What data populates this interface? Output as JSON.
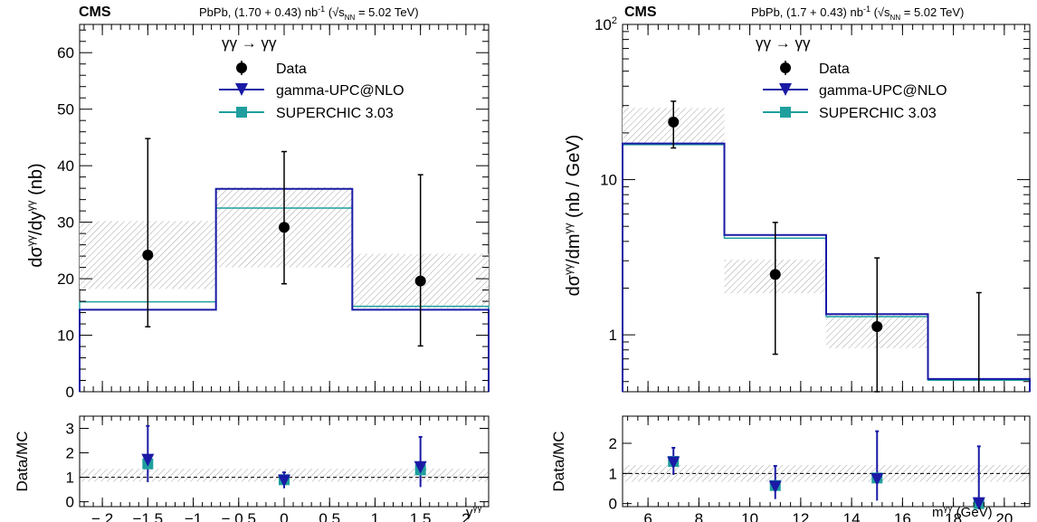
{
  "colors": {
    "data": "#000000",
    "gamma_upc": "#1a1aa6",
    "superchic": "#1f9e9e",
    "uncert_band": "#9a9a9a"
  },
  "chart_data": [
    {
      "id": "rapidity",
      "type": "histogram",
      "experiment": "CMS",
      "lumi_prefix": "PbPb, (1.70 + 0.43) nb",
      "lumi_exp": "-1",
      "energy_text": "= 5.02 TeV)",
      "process": "γγ → γγ",
      "ylabel": "dσ^γγ/dy^γγ (nb)",
      "xlabel": "y^γγ",
      "ratio_ylabel": "Data/MC",
      "xlim": [
        -2.25,
        2.25
      ],
      "ylim": [
        0,
        65
      ],
      "ylog": false,
      "yticks": [
        0,
        10,
        20,
        30,
        40,
        50,
        60
      ],
      "xtick_labels": [
        "− 2",
        "−1.5",
        "−1",
        "− 0.5",
        "0",
        "0.5",
        "1",
        "1.5",
        "2"
      ],
      "xticks": [
        -2,
        -1.5,
        -1,
        -0.5,
        0,
        0.5,
        1,
        1.5,
        2
      ],
      "bin_edges": [
        -2.25,
        -0.75,
        0.75,
        2.25
      ],
      "plot_bins": [
        [
          -2.25,
          -0.75
        ],
        [
          -0.75,
          0.75
        ],
        [
          0.75,
          2.25
        ]
      ],
      "data": {
        "name": "Data",
        "x": [
          -1.5,
          0,
          1.5
        ],
        "y": [
          24.2,
          29.1,
          19.6
        ],
        "err_lo": [
          12.7,
          10.0,
          11.5
        ],
        "err_hi": [
          20.6,
          13.4,
          18.8
        ],
        "syst_lo": [
          18.2,
          22.0,
          14.8
        ],
        "syst_hi": [
          30.2,
          36.2,
          24.4
        ]
      },
      "series": [
        {
          "name": "gamma-UPC@NLO",
          "values": [
            14.5,
            35.9,
            14.5
          ]
        },
        {
          "name": "SUPERCHIC 3.03",
          "values": [
            15.9,
            32.5,
            15.1
          ]
        }
      ],
      "ratio": {
        "ylim": [
          -0.2,
          3.5
        ],
        "yticks": [
          0,
          1,
          2,
          3
        ],
        "band": [
          0.82,
          1.35
        ],
        "x": [
          -1.5,
          0,
          1.5
        ],
        "gamma_upc": [
          1.7,
          0.85,
          1.4
        ],
        "superchic": [
          1.55,
          0.9,
          1.3
        ],
        "err_lo": [
          0.9,
          0.3,
          0.8
        ],
        "err_hi": [
          1.4,
          0.35,
          1.25
        ]
      }
    },
    {
      "id": "mass",
      "type": "histogram",
      "experiment": "CMS",
      "lumi_prefix": "PbPb, (1.7 + 0.43) nb",
      "lumi_exp": "-1",
      "energy_text": "= 5.02 TeV)",
      "process": "γγ → γγ",
      "ylabel": "dσ^γγ/dm^γγ (nb / GeV)",
      "xlabel": "m^γγ (GeV)",
      "ratio_ylabel": "Data/MC",
      "xlim": [
        5,
        21
      ],
      "ylim": [
        0.43,
        100
      ],
      "ylog": true,
      "yticks": [
        1,
        10,
        100
      ],
      "ytick_labels": [
        "1",
        "10",
        "10²"
      ],
      "xtick_labels": [
        "6",
        "8",
        "10",
        "12",
        "14",
        "16",
        "18",
        "20"
      ],
      "xticks": [
        6,
        8,
        10,
        12,
        14,
        16,
        18,
        20
      ],
      "bin_edges": [
        5,
        9,
        13,
        17,
        21
      ],
      "plot_bins": [
        [
          5,
          9
        ],
        [
          9,
          13
        ],
        [
          13,
          17
        ],
        [
          17,
          21
        ]
      ],
      "data": {
        "name": "Data",
        "x": [
          7,
          11,
          15,
          19
        ],
        "y": [
          23.5,
          2.45,
          1.13,
          0.0
        ],
        "err_lo": [
          7.5,
          1.7,
          1.13,
          0.0
        ],
        "err_hi": [
          8.5,
          2.85,
          2.0,
          1.87
        ],
        "syst_lo": [
          17.0,
          1.85,
          0.82,
          null
        ],
        "syst_hi": [
          29.0,
          3.05,
          1.38,
          null
        ]
      },
      "series": [
        {
          "name": "gamma-UPC@NLO",
          "values": [
            17.1,
            4.4,
            1.36,
            0.52
          ]
        },
        {
          "name": "SUPERCHIC 3.03",
          "values": [
            16.8,
            4.2,
            1.31,
            0.51
          ]
        }
      ],
      "ratio": {
        "ylim": [
          -0.1,
          2.9
        ],
        "yticks": [
          0,
          1,
          2
        ],
        "band": [
          0.72,
          1.28
        ],
        "x": [
          7,
          11,
          15,
          19
        ],
        "gamma_upc": [
          1.35,
          0.55,
          0.8,
          0.0
        ],
        "superchic": [
          1.4,
          0.6,
          0.85,
          0.0
        ],
        "err_lo": [
          0.4,
          0.4,
          0.7,
          0.0
        ],
        "err_hi": [
          0.5,
          0.7,
          1.6,
          1.9
        ]
      }
    }
  ]
}
